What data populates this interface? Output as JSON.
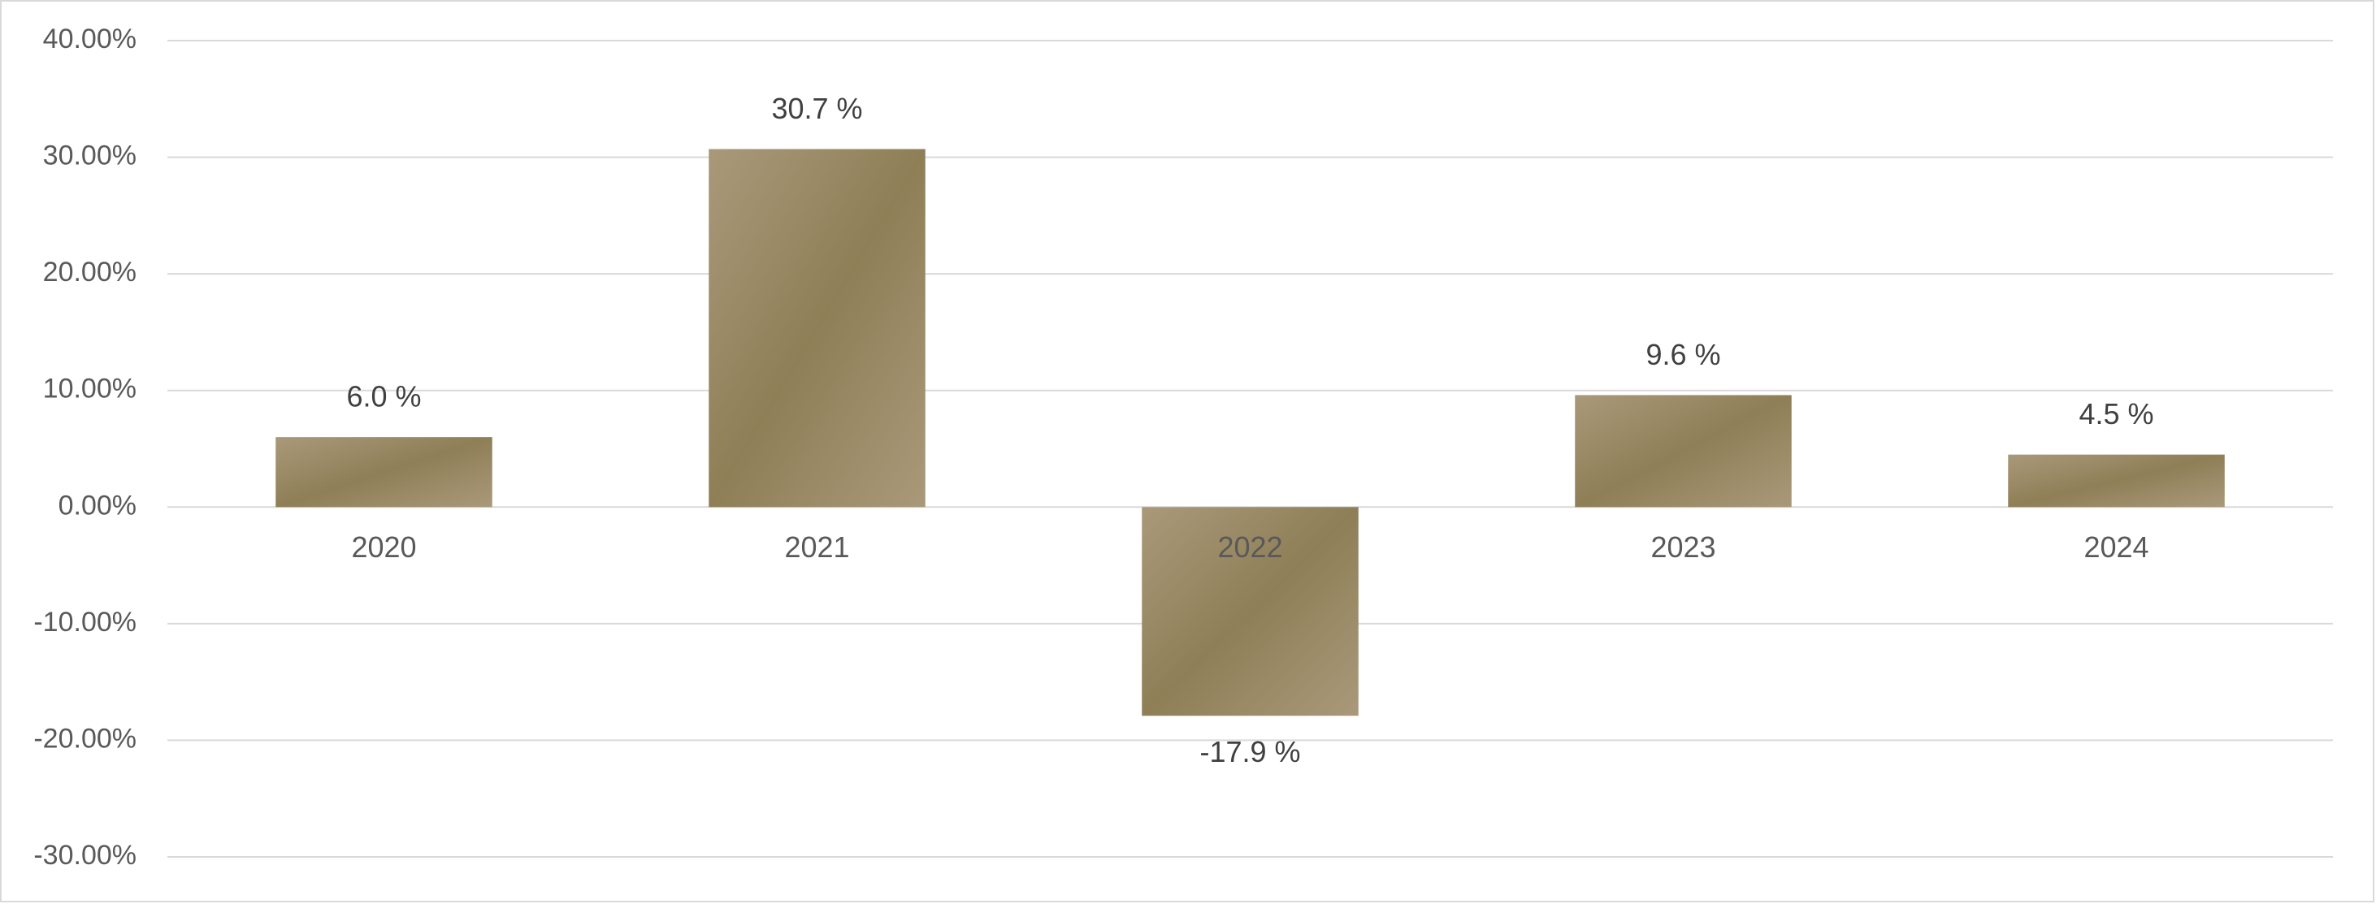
{
  "chart_data": {
    "type": "bar",
    "categories": [
      "2020",
      "2021",
      "2022",
      "2023",
      "2024"
    ],
    "values": [
      6.0,
      30.7,
      -17.9,
      9.6,
      4.5
    ],
    "value_labels": [
      "6.0 %",
      "30.7 %",
      "-17.9 %",
      "9.6 %",
      "4.5 %"
    ],
    "color": "#8f7f57",
    "ylim": [
      -30,
      40
    ],
    "yticks": [
      {
        "value": -30,
        "label": "-30.00%"
      },
      {
        "value": -20,
        "label": "-20.00%"
      },
      {
        "value": -10,
        "label": "-10.00%"
      },
      {
        "value": 0,
        "label": "0.00%"
      },
      {
        "value": 10,
        "label": "10.00%"
      },
      {
        "value": 20,
        "label": "20.00%"
      },
      {
        "value": 30,
        "label": "30.00%"
      },
      {
        "value": 40,
        "label": "40.00%"
      }
    ],
    "grid": true
  }
}
